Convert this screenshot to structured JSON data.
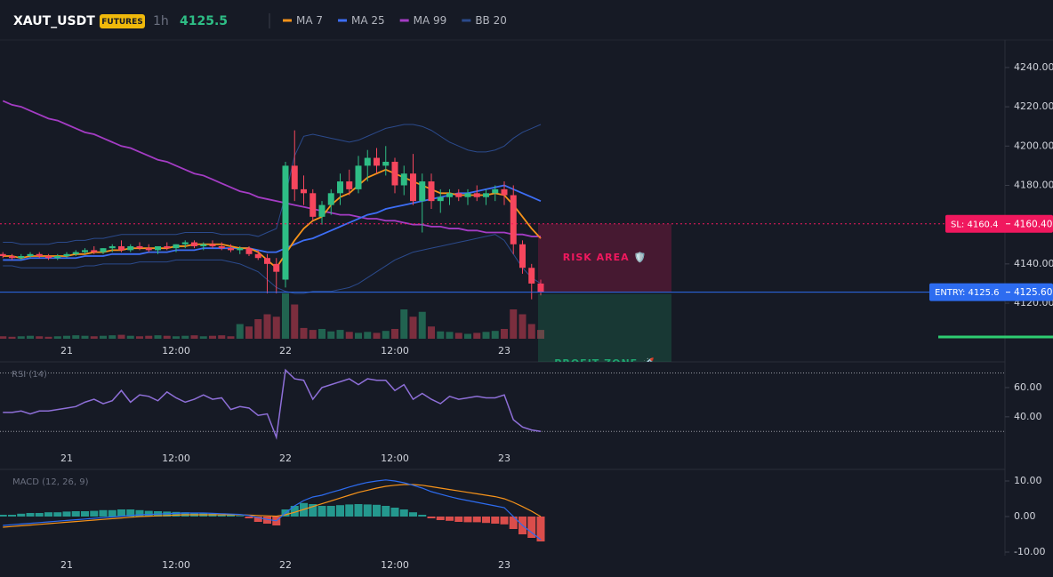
{
  "header": {
    "symbol": "XAUT_USDT",
    "badge": "FUTURES",
    "interval": "1h",
    "price": 4125.5
  },
  "chart_data": [
    {
      "type": "candlestick",
      "categories": [
        null,
        null,
        null,
        null,
        null,
        null,
        null,
        "21",
        null,
        null,
        null,
        null,
        null,
        null,
        null,
        null,
        null,
        null,
        null,
        "12:00",
        null,
        null,
        null,
        null,
        null,
        null,
        null,
        null,
        null,
        null,
        null,
        "22",
        null,
        null,
        null,
        null,
        null,
        null,
        null,
        null,
        null,
        null,
        null,
        "12:00",
        null,
        null,
        null,
        null,
        null,
        null,
        null,
        null,
        null,
        null,
        null,
        "23",
        null,
        null,
        null,
        null
      ],
      "open": [
        4145,
        4144,
        4143,
        4144,
        4145,
        4144,
        4143,
        4144,
        4145,
        4146,
        4147,
        4146,
        4148,
        4149,
        4147,
        4149,
        4148,
        4147,
        4149,
        4148,
        4150,
        4151,
        4149,
        4150,
        4149,
        4148,
        4147,
        4148,
        4145,
        4143,
        4140,
        4132,
        4190,
        4178,
        4176,
        4164,
        4170,
        4176,
        4182,
        4178,
        4190,
        4194,
        4190,
        4192,
        4180,
        4186,
        4172,
        4182,
        4172,
        4174,
        4176,
        4174,
        4176,
        4174,
        4176,
        4178,
        4175,
        4150,
        4138,
        4130
      ],
      "high": [
        4146,
        4145,
        4145,
        4146,
        4146,
        4145,
        4145,
        4146,
        4147,
        4148,
        4149,
        4148,
        4150,
        4152,
        4150,
        4151,
        4150,
        4149,
        4151,
        4150,
        4152,
        4152,
        4151,
        4152,
        4151,
        4150,
        4149,
        4149,
        4147,
        4145,
        4143,
        4192,
        4208,
        4185,
        4178,
        4172,
        4178,
        4186,
        4188,
        4195,
        4198,
        4199,
        4200,
        4194,
        4190,
        4196,
        4186,
        4186,
        4178,
        4178,
        4178,
        4178,
        4180,
        4178,
        4180,
        4182,
        4180,
        4152,
        4140,
        4132
      ],
      "low": [
        4143,
        4142,
        4142,
        4143,
        4143,
        4142,
        4142,
        4143,
        4144,
        4145,
        4145,
        4145,
        4146,
        4146,
        4146,
        4147,
        4146,
        4145,
        4147,
        4146,
        4148,
        4148,
        4147,
        4148,
        4147,
        4146,
        4145,
        4144,
        4142,
        4125,
        4125,
        4128,
        4172,
        4170,
        4162,
        4160,
        4165,
        4170,
        4175,
        4176,
        4182,
        4186,
        4185,
        4176,
        4175,
        4170,
        4156,
        4168,
        4166,
        4170,
        4172,
        4170,
        4172,
        4170,
        4172,
        4170,
        4145,
        4135,
        4122,
        4124
      ],
      "close": [
        4144,
        4143,
        4144,
        4145,
        4144,
        4143,
        4144,
        4145,
        4146,
        4147,
        4146,
        4148,
        4149,
        4147,
        4149,
        4148,
        4147,
        4149,
        4148,
        4150,
        4151,
        4149,
        4150,
        4149,
        4148,
        4147,
        4148,
        4145,
        4143,
        4140,
        4136,
        4190,
        4178,
        4176,
        4164,
        4170,
        4176,
        4182,
        4178,
        4190,
        4194,
        4190,
        4192,
        4180,
        4186,
        4172,
        4182,
        4172,
        4174,
        4176,
        4174,
        4176,
        4174,
        4176,
        4178,
        4175,
        4150,
        4138,
        4130,
        4125.5
      ],
      "up_color": "#2ebd85",
      "down_color": "#f6465d",
      "volume": [
        5,
        4,
        5,
        6,
        5,
        4,
        5,
        6,
        7,
        6,
        5,
        6,
        7,
        8,
        6,
        5,
        6,
        7,
        6,
        5,
        6,
        7,
        5,
        6,
        7,
        5,
        30,
        25,
        40,
        50,
        45,
        93,
        70,
        22,
        18,
        20,
        15,
        18,
        14,
        12,
        14,
        12,
        16,
        20,
        60,
        45,
        55,
        25,
        15,
        14,
        12,
        10,
        12,
        14,
        16,
        20,
        60,
        50,
        30,
        18
      ],
      "volume_ylim": [
        0,
        100
      ],
      "series": [
        {
          "name": "MA 7",
          "color": "#f7931a",
          "values": [
            4144,
            4144,
            4143,
            4144,
            4144,
            4144,
            4144,
            4144,
            4145,
            4145,
            4146,
            4146,
            4147,
            4147,
            4148,
            4148,
            4148,
            4148,
            4148,
            4149,
            4149,
            4150,
            4150,
            4150,
            4150,
            4149,
            4148,
            4148,
            4146,
            4142,
            4138,
            4145,
            4152,
            4158,
            4162,
            4164,
            4170,
            4174,
            4176,
            4180,
            4184,
            4186,
            4188,
            4186,
            4184,
            4182,
            4180,
            4178,
            4176,
            4176,
            4175,
            4175,
            4175,
            4175,
            4176,
            4175,
            4170,
            4164,
            4158,
            4153
          ]
        },
        {
          "name": "MA 25",
          "color": "#3d6ef5",
          "values": [
            4142,
            4142,
            4142,
            4143,
            4143,
            4143,
            4143,
            4143,
            4143,
            4144,
            4144,
            4144,
            4145,
            4145,
            4145,
            4145,
            4146,
            4146,
            4146,
            4147,
            4147,
            4147,
            4148,
            4148,
            4148,
            4148,
            4148,
            4148,
            4147,
            4146,
            4146,
            4148,
            4150,
            4152,
            4153,
            4155,
            4157,
            4159,
            4161,
            4163,
            4165,
            4166,
            4168,
            4169,
            4170,
            4171,
            4172,
            4173,
            4174,
            4175,
            4176,
            4176,
            4177,
            4178,
            4179,
            4180,
            4178,
            4176,
            4174,
            4172
          ]
        },
        {
          "name": "MA 99",
          "color": "#a43cc4",
          "values": [
            4223,
            4221,
            4220,
            4218,
            4216,
            4214,
            4213,
            4211,
            4209,
            4207,
            4206,
            4204,
            4202,
            4200,
            4199,
            4197,
            4195,
            4193,
            4192,
            4190,
            4188,
            4186,
            4185,
            4183,
            4181,
            4179,
            4177,
            4176,
            4174,
            4173,
            4172,
            4171,
            4170,
            4169,
            4168,
            4167,
            4166,
            4165,
            4165,
            4164,
            4163,
            4163,
            4162,
            4162,
            4161,
            4160,
            4160,
            4159,
            4159,
            4158,
            4158,
            4157,
            4157,
            4156,
            4156,
            4156,
            4155,
            4155,
            4154,
            4154
          ]
        }
      ],
      "bands": [
        {
          "name": "BB 20",
          "color": "#2b4a8c",
          "upper": [
            4151,
            4151,
            4150,
            4150,
            4150,
            4150,
            4151,
            4151,
            4152,
            4152,
            4153,
            4153,
            4154,
            4155,
            4155,
            4155,
            4155,
            4155,
            4155,
            4155,
            4156,
            4156,
            4156,
            4156,
            4155,
            4155,
            4155,
            4155,
            4154,
            4156,
            4158,
            4175,
            4195,
            4205,
            4206,
            4205,
            4204,
            4203,
            4202,
            4203,
            4205,
            4207,
            4209,
            4210,
            4211,
            4211,
            4210,
            4208,
            4205,
            4202,
            4200,
            4198,
            4197,
            4197,
            4198,
            4200,
            4204,
            4207,
            4209,
            4211
          ],
          "lower": [
            4139,
            4139,
            4138,
            4138,
            4138,
            4138,
            4138,
            4138,
            4138,
            4139,
            4139,
            4140,
            4140,
            4140,
            4140,
            4141,
            4141,
            4141,
            4141,
            4142,
            4142,
            4142,
            4142,
            4142,
            4142,
            4141,
            4140,
            4138,
            4136,
            4132,
            4128,
            4126,
            4125,
            4125,
            4126,
            4126,
            4126,
            4127,
            4128,
            4130,
            4133,
            4136,
            4139,
            4142,
            4144,
            4146,
            4147,
            4148,
            4149,
            4150,
            4151,
            4152,
            4153,
            4154,
            4155,
            4152,
            4145,
            4138,
            4133,
            4130
          ]
        }
      ],
      "ylim": [
        4101,
        4254
      ],
      "yticks": [
        {
          "value": 4120,
          "label": "4120.00"
        },
        {
          "value": 4140,
          "label": "4140.00"
        },
        {
          "value": 4180,
          "label": "4180.00"
        },
        {
          "value": 4200,
          "label": "4200.00"
        },
        {
          "value": 4220,
          "label": "4220.00"
        },
        {
          "value": 4240,
          "label": "4240.00"
        }
      ],
      "lines": [
        {
          "label": "SL: 4160.4",
          "value": 4160.4,
          "axis_label": "4160.40",
          "color": "#f0185e"
        },
        {
          "label": "ENTRY: 4125.6",
          "value": 4125.6,
          "axis_label": "4125.60",
          "color": "#2d6cf0"
        }
      ],
      "zones": [
        {
          "label": "RISK AREA 🛡️",
          "color": "#f0185e"
        },
        {
          "label": "PROFIT ZONE 🚀",
          "color": "#1fa36f"
        }
      ]
    },
    {
      "type": "line",
      "title": "RSI (14)",
      "color": "#8e6fd8",
      "values": [
        43,
        43,
        44,
        42,
        44,
        44,
        45,
        46,
        47,
        50,
        52,
        49,
        51,
        58,
        50,
        55,
        54,
        51,
        57,
        53,
        50,
        52,
        55,
        52,
        53,
        45,
        47,
        46,
        41,
        42,
        26,
        72,
        66,
        65,
        52,
        60,
        62,
        64,
        66,
        62,
        66,
        65,
        65,
        58,
        62,
        52,
        56,
        52,
        49,
        54,
        52,
        53,
        54,
        53,
        53,
        55,
        38,
        33,
        31,
        30
      ],
      "ylim": [
        18,
        77.6
      ],
      "yticks": [
        {
          "value": 40,
          "label": "40.00"
        },
        {
          "value": 60,
          "label": "60.00"
        }
      ],
      "levels": [
        30,
        70
      ]
    },
    {
      "type": "macd",
      "title": "MACD (12, 26, 9)",
      "histogram": [
        0.5,
        0.5,
        0.8,
        1,
        1,
        1.2,
        1.2,
        1.4,
        1.5,
        1.5,
        1.6,
        1.8,
        1.8,
        2,
        2,
        1.8,
        1.6,
        1.5,
        1.4,
        1.3,
        1.2,
        1,
        0.9,
        0.8,
        0.6,
        0.4,
        0.2,
        -0.5,
        -1.5,
        -2,
        -2.5,
        2,
        3,
        3.8,
        3.5,
        3,
        3,
        3.2,
        3.4,
        3.5,
        3.4,
        3.3,
        3,
        2.5,
        2,
        1.2,
        0.5,
        -0.5,
        -1,
        -1.2,
        -1.5,
        -1.6,
        -1.6,
        -1.8,
        -2,
        -2.2,
        -3.5,
        -5,
        -6,
        -7
      ],
      "macd": [
        -2.5,
        -2.3,
        -2.1,
        -1.9,
        -1.7,
        -1.5,
        -1.3,
        -1.1,
        -0.9,
        -0.7,
        -0.5,
        -0.3,
        -0.1,
        0.1,
        0.3,
        0.5,
        0.6,
        0.7,
        0.8,
        0.9,
        1,
        1,
        1,
        0.9,
        0.8,
        0.7,
        0.6,
        0.3,
        -0.3,
        -0.8,
        -1.2,
        1,
        3,
        4.5,
        5.5,
        6,
        6.8,
        7.5,
        8.3,
        9,
        9.6,
        10,
        10.3,
        10,
        9.5,
        8.8,
        8,
        7,
        6.3,
        5.6,
        5,
        4.5,
        4,
        3.5,
        3,
        2.5,
        0,
        -2.5,
        -4.5,
        -6.5
      ],
      "signal": [
        -3,
        -2.8,
        -2.6,
        -2.4,
        -2.2,
        -2,
        -1.8,
        -1.6,
        -1.4,
        -1.2,
        -1,
        -0.8,
        -0.6,
        -0.4,
        -0.2,
        0,
        0.1,
        0.2,
        0.3,
        0.4,
        0.5,
        0.5,
        0.5,
        0.5,
        0.5,
        0.5,
        0.5,
        0.4,
        0.3,
        0.2,
        0.1,
        0.5,
        1.2,
        2,
        2.8,
        3.6,
        4.4,
        5.2,
        6,
        6.8,
        7.4,
        8,
        8.5,
        8.8,
        9,
        9,
        8.8,
        8.4,
        8,
        7.6,
        7.2,
        6.8,
        6.4,
        6,
        5.6,
        5,
        4,
        2.8,
        1.5,
        0
      ],
      "macd_color": "#2d6cf0",
      "signal_color": "#f7931a",
      "up_color": "#26a69a",
      "down_color": "#ef5350",
      "ylim": [
        -10.75,
        13.25
      ],
      "yticks": [
        {
          "value": -10,
          "label": "-10.00"
        },
        {
          "value": 0,
          "label": "0.00"
        },
        {
          "value": 10,
          "label": "10.00"
        }
      ]
    }
  ]
}
